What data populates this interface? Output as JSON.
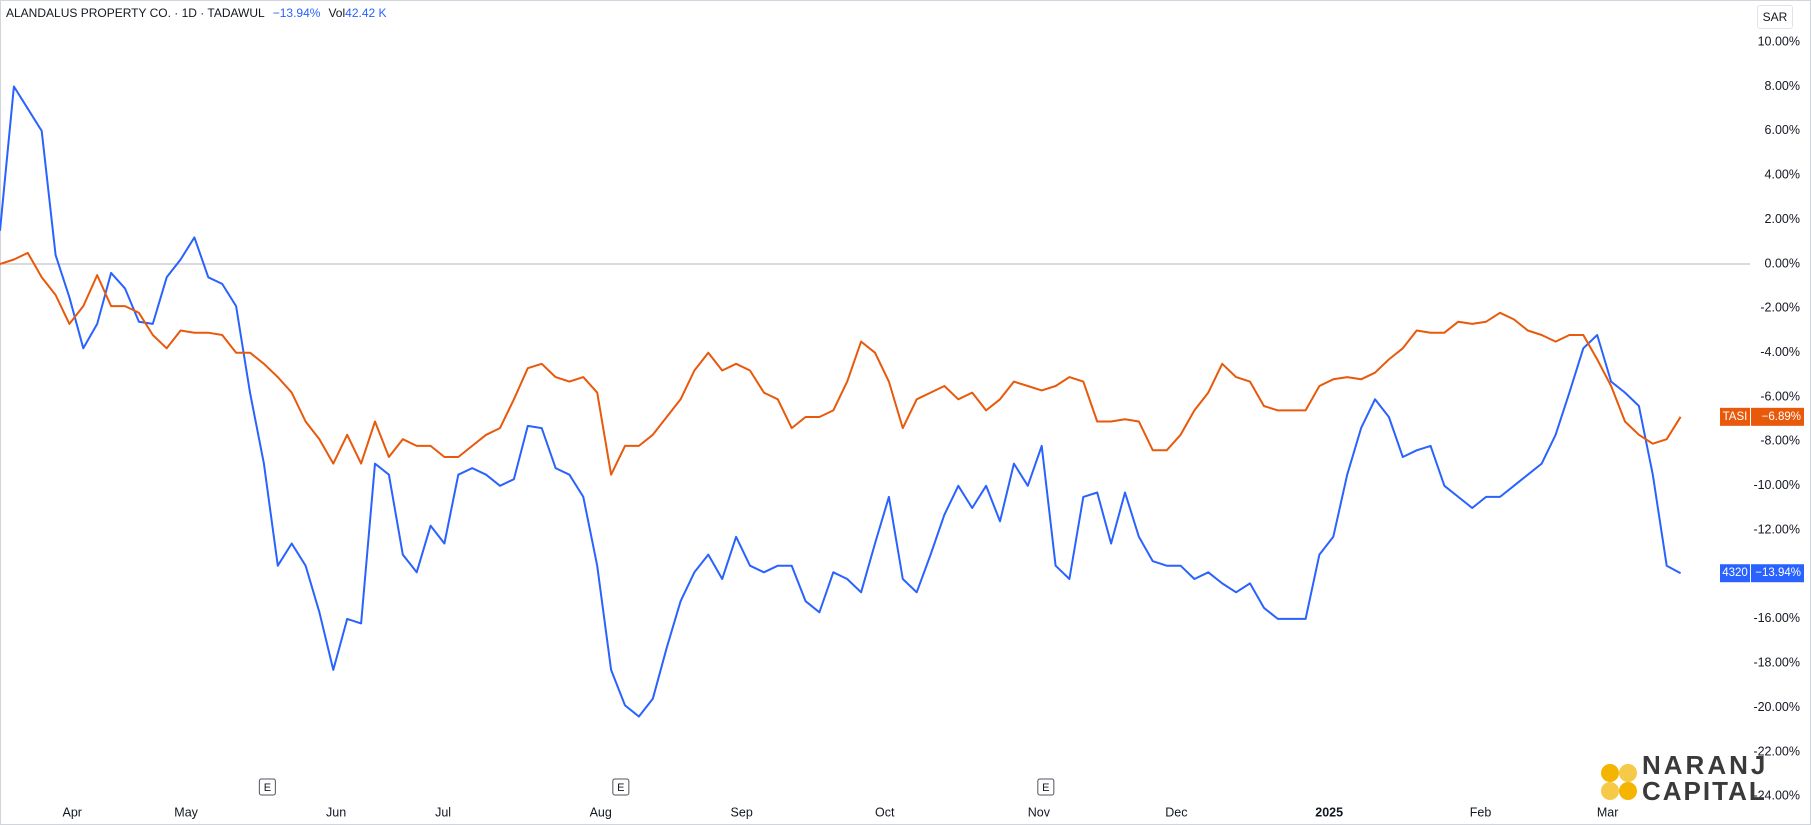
{
  "chart_data": {
    "type": "line",
    "title": "ALANDALUS PROPERTY CO. · 1D · TADAWUL",
    "change": "−13.94%",
    "volume_label": "Vol",
    "volume": "42.42 K",
    "currency": "SAR",
    "watermark": [
      "NARANJ",
      "CAPITAL"
    ],
    "xlim": [
      0,
      126
    ],
    "xticks": [
      {
        "value": 5.2,
        "label": "Apr"
      },
      {
        "value": 13.4,
        "label": "May"
      },
      {
        "value": 24.2,
        "label": "Jun"
      },
      {
        "value": 31.9,
        "label": "Jul"
      },
      {
        "value": 43.25,
        "label": "Aug"
      },
      {
        "value": 53.4,
        "label": "Sep"
      },
      {
        "value": 63.7,
        "label": "Oct"
      },
      {
        "value": 74.8,
        "label": "Nov"
      },
      {
        "value": 84.7,
        "label": "Dec"
      },
      {
        "value": 95.7,
        "label": "2025"
      },
      {
        "value": 106.6,
        "label": "Feb"
      },
      {
        "value": 115.75,
        "label": "Mar"
      }
    ],
    "ylim": [
      -25.2,
      11.9
    ],
    "yticks": [
      {
        "value": 10,
        "label": "10.00%"
      },
      {
        "value": 8,
        "label": "8.00%"
      },
      {
        "value": 6,
        "label": "6.00%"
      },
      {
        "value": 4,
        "label": "4.00%"
      },
      {
        "value": 2,
        "label": "2.00%"
      },
      {
        "value": 0,
        "label": "0.00%"
      },
      {
        "value": -2,
        "label": "-2.00%"
      },
      {
        "value": -4,
        "label": "-4.00%"
      },
      {
        "value": -6,
        "label": "-6.00%"
      },
      {
        "value": -8,
        "label": "-8.00%"
      },
      {
        "value": -10,
        "label": "-10.00%"
      },
      {
        "value": -12,
        "label": "-12.00%"
      },
      {
        "value": -14,
        "label": "-14.00%"
      },
      {
        "value": -16,
        "label": "-16.00%"
      },
      {
        "value": -18,
        "label": "-18.00%"
      },
      {
        "value": -20,
        "label": "-20.00%"
      },
      {
        "value": -22,
        "label": "-22.00%"
      },
      {
        "value": -24,
        "label": "-24.00%"
      }
    ],
    "zero_line": true,
    "events": [
      {
        "x": 19.25,
        "label": "E"
      },
      {
        "x": 44.7,
        "label": "E"
      },
      {
        "x": 75.3,
        "label": "E"
      }
    ],
    "series": [
      {
        "name": "4320",
        "color": "#2962ff",
        "last_label": "−13.94%",
        "values": [
          1.5,
          8.0,
          7,
          6,
          0.4,
          -1.5,
          -3.8,
          -2.7,
          -0.4,
          -1.1,
          -2.6,
          -2.7,
          -0.6,
          0.2,
          1.2,
          -0.6,
          -0.9,
          -1.9,
          -5.8,
          -9,
          -13.6,
          -12.6,
          -13.6,
          -15.7,
          -18.3,
          -16,
          -16.2,
          -9,
          -9.5,
          -13.1,
          -13.9,
          -11.8,
          -12.6,
          -9.5,
          -9.2,
          -9.5,
          -10,
          -9.7,
          -7.3,
          -7.4,
          -9.2,
          -9.5,
          -10.5,
          -13.6,
          -18.3,
          -19.9,
          -20.4,
          -19.6,
          -17.3,
          -15.2,
          -13.9,
          -13.1,
          -14.2,
          -12.3,
          -13.6,
          -13.9,
          -13.6,
          -13.6,
          -15.2,
          -15.7,
          -13.9,
          -14.2,
          -14.8,
          -12.6,
          -10.5,
          -14.2,
          -14.8,
          -13.1,
          -11.3,
          -10,
          -11,
          -10,
          -11.6,
          -9,
          -10,
          -8.2,
          -13.6,
          -14.2,
          -10.5,
          -10.3,
          -12.6,
          -10.3,
          -12.3,
          -13.4,
          -13.6,
          -13.6,
          -14.2,
          -13.9,
          -14.4,
          -14.8,
          -14.4,
          -15.5,
          -16,
          -16,
          -16,
          -13.1,
          -12.3,
          -9.5,
          -7.4,
          -6.1,
          -6.9,
          -8.7,
          -8.4,
          -8.2,
          -10,
          -10.5,
          -11,
          -10.5,
          -10.5,
          -10,
          -9.5,
          -9,
          -7.7,
          -5.8,
          -3.8,
          -3.2,
          -5.3,
          -5.8,
          -6.4,
          -9.5,
          -13.6,
          -13.94
        ]
      },
      {
        "name": "TASI",
        "color": "#e8590c",
        "last_label": "−6.89%",
        "values": [
          0,
          0.2,
          0.5,
          -0.6,
          -1.4,
          -2.7,
          -1.9,
          -0.5,
          -1.9,
          -1.9,
          -2.2,
          -3.2,
          -3.8,
          -3,
          -3.1,
          -3.1,
          -3.2,
          -4,
          -4,
          -4.5,
          -5.1,
          -5.8,
          -7.1,
          -7.9,
          -9,
          -7.7,
          -9,
          -7.1,
          -8.7,
          -7.9,
          -8.2,
          -8.2,
          -8.7,
          -8.7,
          -8.2,
          -7.7,
          -7.4,
          -6.1,
          -4.7,
          -4.5,
          -5.1,
          -5.3,
          -5.1,
          -5.8,
          -9.5,
          -8.2,
          -8.2,
          -7.7,
          -6.9,
          -6.1,
          -4.8,
          -4,
          -4.8,
          -4.5,
          -4.8,
          -5.8,
          -6.1,
          -7.4,
          -6.9,
          -6.9,
          -6.6,
          -5.3,
          -3.5,
          -4,
          -5.3,
          -7.4,
          -6.1,
          -5.8,
          -5.5,
          -6.1,
          -5.8,
          -6.6,
          -6.1,
          -5.3,
          -5.5,
          -5.7,
          -5.5,
          -5.1,
          -5.3,
          -7.1,
          -7.1,
          -7,
          -7.1,
          -8.4,
          -8.4,
          -7.7,
          -6.6,
          -5.8,
          -4.5,
          -5.1,
          -5.3,
          -6.4,
          -6.6,
          -6.6,
          -6.6,
          -5.5,
          -5.2,
          -5.1,
          -5.2,
          -4.9,
          -4.3,
          -3.8,
          -3,
          -3.1,
          -3.1,
          -2.6,
          -2.7,
          -2.6,
          -2.2,
          -2.5,
          -3,
          -3.2,
          -3.5,
          -3.2,
          -3.2,
          -4.3,
          -5.5,
          -7.1,
          -7.7,
          -8.1,
          -7.9,
          -6.89
        ]
      }
    ]
  }
}
